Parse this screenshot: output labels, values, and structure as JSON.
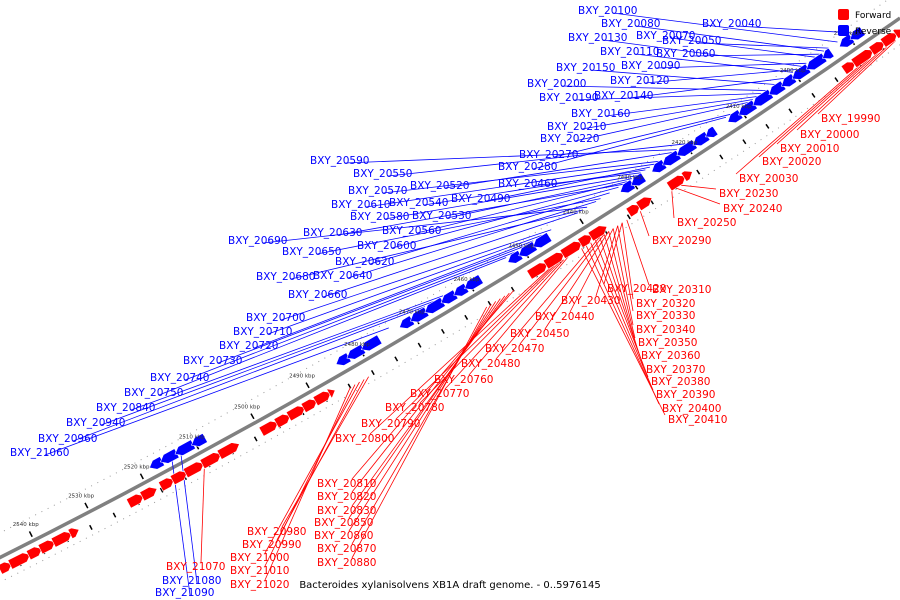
{
  "caption": "Bacteroides xylanisolvens XB1A draft genome. - 0..5976145",
  "legend": [
    {
      "label": "Forward",
      "color": "#ff0000"
    },
    {
      "label": "Reverse",
      "color": "#0000ff"
    }
  ],
  "colors": {
    "forward": "#ff0000",
    "reverse": "#0000ff",
    "backbone": "#808080"
  },
  "ticks": [
    {
      "label": "2390 kbp",
      "kbp": 2390
    },
    {
      "label": "2400 kbp",
      "kbp": 2400
    },
    {
      "label": "2410 kbp",
      "kbp": 2410
    },
    {
      "label": "2420 kbp",
      "kbp": 2420
    },
    {
      "label": "2430 kbp",
      "kbp": 2430
    },
    {
      "label": "2440 kbp",
      "kbp": 2440
    },
    {
      "label": "2450 kbp",
      "kbp": 2450
    },
    {
      "label": "2460 kbp",
      "kbp": 2460
    },
    {
      "label": "2470 kbp",
      "kbp": 2470
    },
    {
      "label": "2480 kbp",
      "kbp": 2480
    },
    {
      "label": "2490 kbp",
      "kbp": 2490
    },
    {
      "label": "2500 kbp",
      "kbp": 2500
    },
    {
      "label": "2510 kbp",
      "kbp": 2510
    },
    {
      "label": "2520 kbp",
      "kbp": 2520
    },
    {
      "label": "2530 kbp",
      "kbp": 2530
    },
    {
      "label": "2540 kbp",
      "kbp": 2540
    }
  ],
  "reverse_genes": [
    "BXY_20100",
    "BXY_20080",
    "BXY_20070",
    "BXY_20040",
    "BXY_20130",
    "BXY_20050",
    "BXY_20110",
    "BXY_20060",
    "BXY_20150",
    "BXY_20090",
    "BXY_20200",
    "BXY_20120",
    "BXY_20190",
    "BXY_20140",
    "BXY_20160",
    "BXY_20210",
    "BXY_20220",
    "BXY_20270",
    "BXY_20280",
    "BXY_20590",
    "BXY_20550",
    "BXY_20520",
    "BXY_20460",
    "BXY_20570",
    "BXY_20490",
    "BXY_20610",
    "BXY_20540",
    "BXY_20580",
    "BXY_20530",
    "BXY_20630",
    "BXY_20560",
    "BXY_20690",
    "BXY_20600",
    "BXY_20650",
    "BXY_20620",
    "BXY_20680",
    "BXY_20640",
    "BXY_20660",
    "BXY_20700",
    "BXY_20710",
    "BXY_20720",
    "BXY_20730",
    "BXY_20740",
    "BXY_20750",
    "BXY_20840",
    "BXY_20940",
    "BXY_20960",
    "BXY_21060",
    "BXY_21080",
    "BXY_21090"
  ],
  "forward_genes": [
    "BXY_19990",
    "BXY_20000",
    "BXY_20010",
    "BXY_20020",
    "BXY_20030",
    "BXY_20230",
    "BXY_20240",
    "BXY_20250",
    "BXY_20290",
    "BXY_20310",
    "BXY_20420",
    "BXY_20320",
    "BXY_20430",
    "BXY_20330",
    "BXY_20440",
    "BXY_20340",
    "BXY_20450",
    "BXY_20350",
    "BXY_20470",
    "BXY_20360",
    "BXY_20480",
    "BXY_20370",
    "BXY_20380",
    "BXY_20390",
    "BXY_20400",
    "BXY_20410",
    "BXY_20760",
    "BXY_20770",
    "BXY_20780",
    "BXY_20790",
    "BXY_20800",
    "BXY_20810",
    "BXY_20820",
    "BXY_20830",
    "BXY_20850",
    "BXY_20860",
    "BXY_20870",
    "BXY_20880",
    "BXY_20980",
    "BXY_20990",
    "BXY_21000",
    "BXY_21010",
    "BXY_21020",
    "BXY_21070"
  ]
}
